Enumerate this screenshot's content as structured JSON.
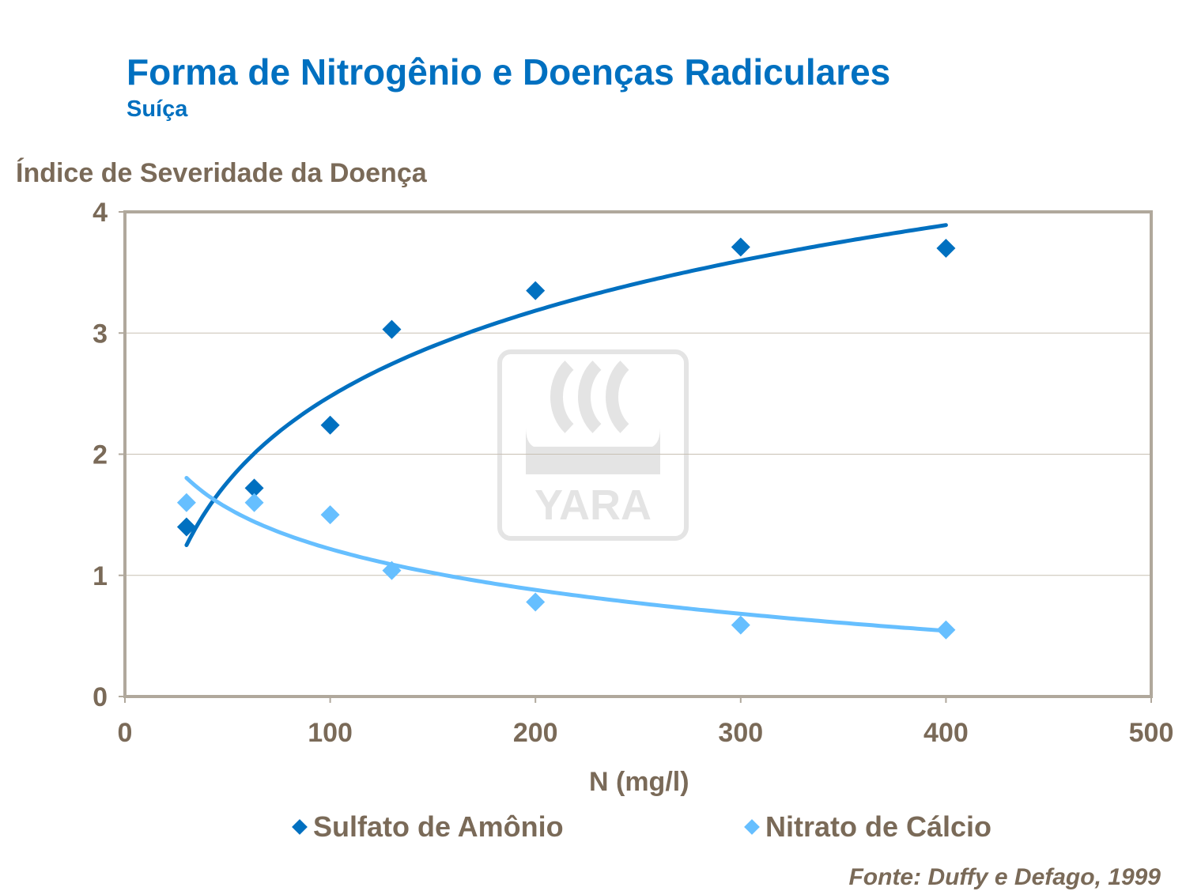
{
  "title": "Forma de Nitrogênio e Doenças Radiculares",
  "subtitle": "Suíça",
  "source": "Fonte: Duffy e Defago, 1999",
  "logo": "YARA",
  "chart_data": {
    "type": "scatter",
    "ylabel": "Índice de Severidade da Doença",
    "xlabel": "N (mg/l)",
    "xlim": [
      0,
      500
    ],
    "ylim": [
      0,
      4
    ],
    "xticks": [
      "0",
      "100",
      "200",
      "300",
      "400",
      "500"
    ],
    "yticks": [
      "0",
      "1",
      "2",
      "3",
      "4"
    ],
    "grid": "horizontal",
    "legend": "bottom",
    "trendline": "logarithmic",
    "series": [
      {
        "name": "Sulfato de Amônio",
        "color": "#0070C0",
        "x": [
          30,
          63,
          100,
          130,
          200,
          300,
          400
        ],
        "y": [
          1.4,
          1.72,
          2.24,
          3.03,
          3.35,
          3.71,
          3.7
        ]
      },
      {
        "name": "Nitrato de Cálcio",
        "color": "#66BFFF",
        "x": [
          30,
          63,
          100,
          130,
          200,
          300,
          400
        ],
        "y": [
          1.6,
          1.6,
          1.5,
          1.04,
          0.78,
          0.59,
          0.55
        ]
      }
    ]
  }
}
